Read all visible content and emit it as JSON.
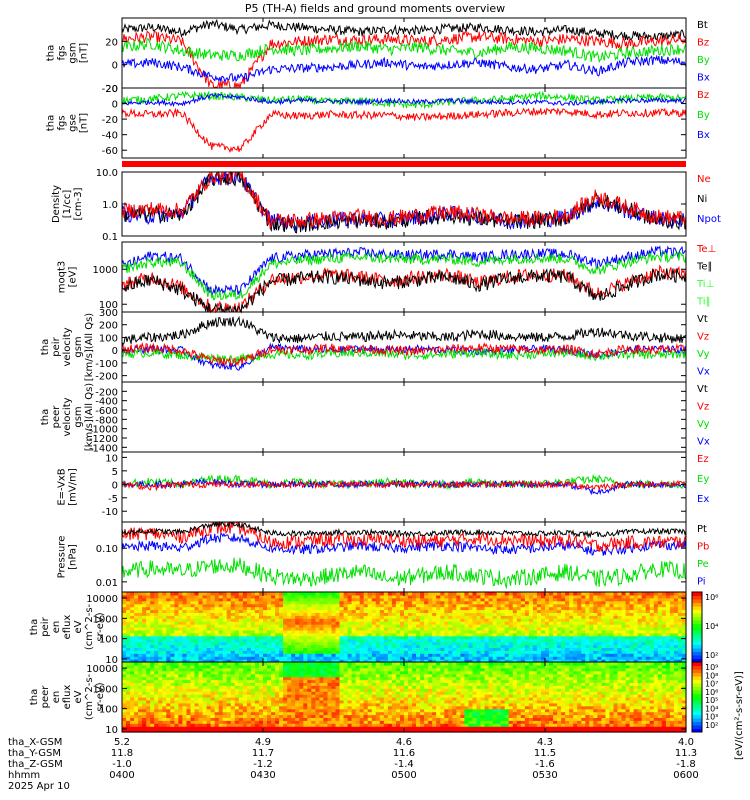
{
  "title": "P5 (TH-A) fields and ground moments overview",
  "colors": {
    "black": "#000000",
    "red": "#ff0000",
    "green": "#00e000",
    "blue": "#0000ff",
    "lightgreen": "#33ff33"
  },
  "chart_data": [
    {
      "type": "line",
      "ylabel": [
        "tha",
        "fgs",
        "gsm",
        "[nT]"
      ],
      "ylim": [
        -20,
        40
      ],
      "yscale": "linear",
      "ticks": [
        20,
        0,
        -20
      ],
      "tick_labels": [
        "20",
        "0",
        "-20"
      ],
      "legend": [
        [
          "Bt",
          "black"
        ],
        [
          "Bz",
          "red"
        ],
        [
          "By",
          "green"
        ],
        [
          "Bx",
          "blue"
        ]
      ],
      "series": [
        {
          "name": "Bt",
          "color": "black",
          "base": [
            30,
            32,
            28,
            35,
            30,
            34,
            32,
            30,
            28,
            30,
            29,
            31,
            32,
            30,
            28,
            30,
            27,
            25,
            24,
            26
          ],
          "noise": 4
        },
        {
          "name": "Bz",
          "color": "red",
          "base": [
            22,
            24,
            20,
            -18,
            -18,
            18,
            20,
            22,
            21,
            22,
            20,
            22,
            24,
            22,
            20,
            22,
            20,
            18,
            20,
            22
          ],
          "noise": 5
        },
        {
          "name": "By",
          "color": "green",
          "base": [
            15,
            18,
            12,
            8,
            8,
            14,
            12,
            14,
            16,
            13,
            15,
            12,
            10,
            15,
            14,
            12,
            6,
            10,
            12,
            14
          ],
          "noise": 5
        },
        {
          "name": "Bx",
          "color": "blue",
          "base": [
            0,
            2,
            -2,
            -10,
            -12,
            -4,
            -3,
            -2,
            0,
            2,
            -2,
            0,
            2,
            -2,
            -4,
            0,
            -6,
            2,
            4,
            2
          ],
          "noise": 4
        }
      ]
    },
    {
      "type": "line",
      "ylabel": [
        "tha",
        "fgs",
        "gse",
        "[nT]"
      ],
      "ylim": [
        -70,
        20
      ],
      "yscale": "linear",
      "ticks": [
        20,
        0,
        -20,
        -40,
        -60
      ],
      "tick_labels": [
        "20",
        "0",
        "-20",
        "-40",
        "-60"
      ],
      "legend": [
        [
          "Bz",
          "red"
        ],
        [
          "By",
          "green"
        ],
        [
          "Bx",
          "blue"
        ]
      ],
      "series": [
        {
          "name": "By",
          "color": "green",
          "base": [
            4,
            6,
            10,
            10,
            8,
            4,
            6,
            2,
            4,
            0,
            -2,
            2,
            4,
            6,
            10,
            8,
            4,
            6,
            8,
            6
          ],
          "noise": 5
        },
        {
          "name": "Bx",
          "color": "blue",
          "base": [
            0,
            2,
            0,
            10,
            8,
            2,
            4,
            3,
            2,
            4,
            2,
            4,
            2,
            2,
            2,
            0,
            2,
            4,
            4,
            4
          ],
          "noise": 3
        },
        {
          "name": "Bz",
          "color": "red",
          "base": [
            -12,
            -14,
            -12,
            -55,
            -58,
            -14,
            -16,
            -14,
            -15,
            -15,
            -18,
            -16,
            -14,
            -12,
            -10,
            -10,
            -14,
            -12,
            -12,
            -12
          ],
          "noise": 5
        }
      ]
    },
    {
      "type": "line",
      "ylabel": [
        "Density",
        "[1/cc]",
        "[cm-3]"
      ],
      "ylim": [
        0.1,
        10
      ],
      "yscale": "log",
      "ticks": [
        10,
        1,
        0.1
      ],
      "tick_labels": [
        "10.0",
        "1.0",
        "0.1"
      ],
      "legend": [
        [
          "Ne",
          "red"
        ],
        [
          "Ni",
          "black"
        ],
        [
          "Npot",
          "blue"
        ]
      ],
      "series": [
        {
          "name": "Npot",
          "color": "blue",
          "base": [
            0.5,
            0.4,
            0.5,
            7,
            7,
            0.3,
            0.25,
            0.3,
            0.35,
            0.3,
            0.4,
            0.5,
            0.4,
            0.3,
            0.3,
            0.4,
            1.2,
            0.6,
            0.35,
            0.3
          ],
          "noise": 0.25,
          "log": true
        },
        {
          "name": "Ni",
          "color": "black",
          "base": [
            0.45,
            0.5,
            0.45,
            6,
            6.5,
            0.25,
            0.22,
            0.28,
            0.3,
            0.28,
            0.35,
            0.45,
            0.35,
            0.28,
            0.3,
            0.35,
            1.5,
            0.7,
            0.3,
            0.28
          ],
          "noise": 0.25,
          "log": true
        },
        {
          "name": "Ne",
          "color": "red",
          "base": [
            0.6,
            0.7,
            0.6,
            7.5,
            8,
            0.3,
            0.3,
            0.35,
            0.4,
            0.35,
            0.45,
            0.55,
            0.45,
            0.35,
            0.35,
            0.45,
            1.8,
            0.8,
            0.4,
            0.35
          ],
          "noise": 0.25,
          "log": true
        }
      ]
    },
    {
      "type": "line",
      "ylabel": [
        "moqt3",
        "[eV]"
      ],
      "ylim": [
        60,
        6000
      ],
      "yscale": "log",
      "ticks": [
        1000,
        100
      ],
      "tick_labels": [
        "1000",
        "100"
      ],
      "legend": [
        [
          "Te⊥",
          "red"
        ],
        [
          "Te∥",
          "black"
        ],
        [
          "Ti⊥",
          "lightgreen"
        ],
        [
          "Ti∥",
          "lightgreen"
        ]
      ],
      "series": [
        {
          "name": "Ti⊥",
          "color": "blue",
          "base": [
            1200,
            2500,
            2000,
            250,
            250,
            2000,
            2500,
            2800,
            3000,
            2600,
            2500,
            2800,
            2200,
            2600,
            2800,
            2700,
            1500,
            2200,
            3200,
            3000
          ],
          "noise": 0.15,
          "log": true
        },
        {
          "name": "Ti∥",
          "color": "green",
          "base": [
            1000,
            1600,
            1500,
            180,
            180,
            1400,
            1800,
            2000,
            2200,
            2000,
            1900,
            2000,
            1600,
            2000,
            2100,
            2000,
            900,
            1600,
            2300,
            2200
          ],
          "noise": 0.15,
          "log": true
        },
        {
          "name": "Te⊥",
          "color": "red",
          "base": [
            350,
            600,
            300,
            80,
            80,
            500,
            600,
            700,
            600,
            450,
            600,
            700,
            400,
            600,
            700,
            650,
            200,
            400,
            800,
            700
          ],
          "noise": 0.2,
          "log": true
        },
        {
          "name": "Te∥",
          "color": "black",
          "base": [
            300,
            500,
            250,
            70,
            70,
            450,
            550,
            600,
            500,
            400,
            500,
            600,
            350,
            550,
            650,
            600,
            150,
            350,
            700,
            650
          ],
          "noise": 0.2,
          "log": true
        }
      ]
    },
    {
      "type": "line",
      "ylabel": [
        "tha",
        "peir",
        "velocity",
        "gsm",
        "[km/s](All Qs)"
      ],
      "ylim": [
        -250,
        300
      ],
      "yscale": "linear",
      "ticks": [
        300,
        200,
        100,
        0,
        -100,
        -200
      ],
      "tick_labels": [
        "300",
        "200",
        "100",
        "0",
        "-100",
        "-200"
      ],
      "legend": [
        [
          "Vt",
          "black"
        ],
        [
          "Vz",
          "red"
        ],
        [
          "Vy",
          "green"
        ],
        [
          "Vx",
          "blue"
        ]
      ],
      "series": [
        {
          "name": "Vx",
          "color": "blue",
          "base": [
            0,
            10,
            0,
            -120,
            -130,
            20,
            10,
            0,
            10,
            0,
            10,
            0,
            -10,
            0,
            10,
            0,
            -40,
            0,
            10,
            0
          ],
          "noise": 30
        },
        {
          "name": "Vy",
          "color": "green",
          "base": [
            -30,
            -20,
            -40,
            -60,
            -70,
            -30,
            -40,
            -30,
            -20,
            -30,
            -40,
            -30,
            -20,
            -40,
            -30,
            -20,
            -50,
            -30,
            -40,
            -30
          ],
          "noise": 35
        },
        {
          "name": "Vz",
          "color": "red",
          "base": [
            10,
            20,
            0,
            -80,
            -90,
            10,
            0,
            20,
            10,
            0,
            -10,
            10,
            20,
            10,
            0,
            10,
            -30,
            10,
            0,
            10
          ],
          "noise": 35
        },
        {
          "name": "Vt",
          "color": "black",
          "base": [
            80,
            100,
            120,
            220,
            230,
            100,
            90,
            110,
            100,
            120,
            110,
            100,
            130,
            110,
            100,
            110,
            150,
            120,
            100,
            90
          ],
          "noise": 40
        }
      ]
    },
    {
      "type": "line",
      "ylabel": [
        "tha",
        "peer",
        "velocity",
        "gsm",
        "[km/s](All Qs)"
      ],
      "ylim": [
        -1500,
        0
      ],
      "yscale": "linear",
      "ticks": [
        -200,
        -400,
        -600,
        -800,
        -1000,
        -1200,
        -1400
      ],
      "tick_labels": [
        "-200",
        "-400",
        "-600",
        "-800",
        "-1000",
        "-1200",
        "-1400"
      ],
      "legend": [
        [
          "Vt",
          "black"
        ],
        [
          "Vz",
          "red"
        ],
        [
          "Vy",
          "green"
        ],
        [
          "Vx",
          "blue"
        ]
      ],
      "series": []
    },
    {
      "type": "line",
      "ylabel": [
        "E=-VxB",
        "[mV/m]"
      ],
      "ylim": [
        -14,
        12
      ],
      "yscale": "linear",
      "ticks": [
        10,
        5,
        0,
        -5,
        -10
      ],
      "tick_labels": [
        "10",
        "5",
        "0",
        "-5",
        "-10"
      ],
      "legend": [
        [
          "Ez",
          "red"
        ],
        [
          "Ey",
          "green"
        ],
        [
          "Ex",
          "blue"
        ]
      ],
      "series": [
        {
          "name": "Ey",
          "color": "green",
          "base": [
            0,
            1,
            0,
            2,
            2,
            0,
            1,
            0,
            0,
            1,
            0,
            0,
            1,
            0,
            0,
            1,
            2,
            0,
            0,
            0
          ],
          "noise": 1.5
        },
        {
          "name": "Ex",
          "color": "blue",
          "base": [
            0,
            0,
            0,
            1,
            0,
            0,
            0,
            0,
            0,
            0,
            0,
            0,
            0,
            0,
            0,
            0,
            -3,
            0,
            0,
            0
          ],
          "noise": 1.2
        },
        {
          "name": "Ez",
          "color": "red",
          "base": [
            0,
            -1,
            0,
            0,
            0,
            0,
            0,
            0,
            0,
            0,
            0,
            0,
            0,
            0,
            0,
            0,
            -1,
            0,
            0,
            0
          ],
          "noise": 1.2
        }
      ]
    },
    {
      "type": "line",
      "ylabel": [
        "Pressure",
        "[nPa]"
      ],
      "ylim": [
        0.005,
        0.6
      ],
      "yscale": "log",
      "ticks": [
        0.1,
        0.01
      ],
      "tick_labels": [
        "0.10",
        "0.01"
      ],
      "legend": [
        [
          "Pt",
          "black"
        ],
        [
          "Pb",
          "red"
        ],
        [
          "Pe",
          "green"
        ],
        [
          "Pi",
          "blue"
        ]
      ],
      "series": [
        {
          "name": "Pe",
          "color": "green",
          "base": [
            0.02,
            0.025,
            0.02,
            0.03,
            0.03,
            0.015,
            0.012,
            0.015,
            0.02,
            0.012,
            0.015,
            0.02,
            0.015,
            0.012,
            0.015,
            0.02,
            0.012,
            0.015,
            0.025,
            0.02
          ],
          "noise": 0.25,
          "log": true
        },
        {
          "name": "Pi",
          "color": "blue",
          "base": [
            0.1,
            0.12,
            0.1,
            0.2,
            0.2,
            0.1,
            0.09,
            0.1,
            0.12,
            0.1,
            0.11,
            0.12,
            0.1,
            0.09,
            0.1,
            0.12,
            0.08,
            0.1,
            0.13,
            0.12
          ],
          "noise": 0.15,
          "log": true
        },
        {
          "name": "Pb",
          "color": "red",
          "base": [
            0.25,
            0.28,
            0.22,
            0.4,
            0.4,
            0.15,
            0.16,
            0.18,
            0.17,
            0.18,
            0.16,
            0.17,
            0.2,
            0.18,
            0.16,
            0.17,
            0.12,
            0.15,
            0.15,
            0.16
          ],
          "noise": 0.2,
          "log": true
        },
        {
          "name": "Pt",
          "color": "black",
          "base": [
            0.3,
            0.32,
            0.3,
            0.5,
            0.5,
            0.28,
            0.27,
            0.29,
            0.3,
            0.28,
            0.27,
            0.29,
            0.3,
            0.28,
            0.27,
            0.29,
            0.25,
            0.3,
            0.32,
            0.31
          ],
          "noise": 0.08,
          "log": true
        }
      ]
    },
    {
      "type": "heatmap",
      "ylabel": [
        "tha",
        "peir",
        "en",
        "eflux",
        "eV",
        "(cm^2-s-",
        "sr-eV)"
      ],
      "ylim": [
        7,
        20000
      ],
      "yscale": "log",
      "ticks": [
        10000,
        1000,
        100,
        10
      ],
      "tick_labels": [
        "10000",
        "1000",
        "100",
        "10"
      ],
      "colorbar": {
        "tick_labels": [
          "10⁶",
          "10⁴",
          "10²"
        ],
        "label": "[eV/(cm²-s-sr-eV)](All Qs)"
      }
    },
    {
      "type": "heatmap",
      "ylabel": [
        "tha",
        "peer",
        "en",
        "eflux",
        "eV",
        "(cm^2-s-",
        "sr-eV)"
      ],
      "ylim": [
        7,
        20000
      ],
      "yscale": "log",
      "ticks": [
        10000,
        1000,
        100,
        10
      ],
      "tick_labels": [
        "10000",
        "1000",
        "100",
        "10"
      ],
      "colorbar": {
        "tick_labels": [
          "10⁹",
          "10⁸",
          "10⁷",
          "10⁶",
          "10⁵",
          "10⁴",
          "10³",
          "10²"
        ],
        "label": "[eV/(cm²-s-sr-eV)]"
      }
    }
  ],
  "x_axis": {
    "rows": [
      {
        "label": "tha_X-GSM",
        "values": [
          "5.2",
          "4.9",
          "4.6",
          "4.3",
          "4.0"
        ]
      },
      {
        "label": "tha_Y-GSM",
        "values": [
          "11.8",
          "11.7",
          "11.6",
          "11.5",
          "11.3"
        ]
      },
      {
        "label": "tha_Z-GSM",
        "values": [
          "-1.0",
          "-1.2",
          "-1.4",
          "-1.6",
          "-1.8"
        ]
      },
      {
        "label": "hhmm",
        "values": [
          "0400",
          "0430",
          "0500",
          "0530",
          "0600"
        ]
      }
    ],
    "date": "2025 Apr 10"
  }
}
